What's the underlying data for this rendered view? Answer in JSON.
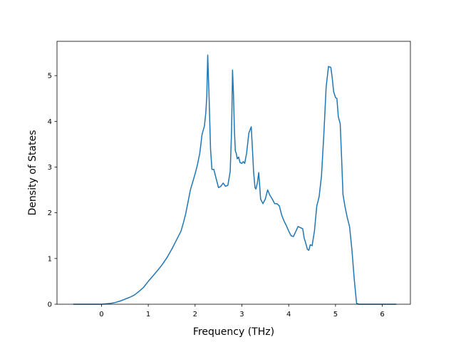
{
  "chart_data": {
    "type": "line",
    "title": "",
    "xlabel": "Frequency (THz)",
    "ylabel": "Density of States",
    "xlim": [
      -0.95,
      6.6
    ],
    "ylim": [
      0,
      5.75
    ],
    "grid": false,
    "legend": "none",
    "x_ticks": [
      0,
      1,
      2,
      3,
      4,
      5,
      6
    ],
    "y_ticks": [
      0,
      1,
      2,
      3,
      4,
      5
    ],
    "series": [
      {
        "color": "#1f77b4",
        "x": [
          -0.6,
          -0.2,
          0.0,
          0.2,
          0.3,
          0.4,
          0.5,
          0.6,
          0.7,
          0.8,
          0.9,
          1.0,
          1.1,
          1.2,
          1.3,
          1.4,
          1.5,
          1.6,
          1.7,
          1.75,
          1.8,
          1.9,
          2.0,
          2.05,
          2.1,
          2.15,
          2.2,
          2.23,
          2.25,
          2.27,
          2.3,
          2.33,
          2.36,
          2.4,
          2.45,
          2.5,
          2.55,
          2.6,
          2.65,
          2.7,
          2.75,
          2.78,
          2.8,
          2.82,
          2.84,
          2.86,
          2.88,
          2.9,
          2.93,
          2.96,
          3.0,
          3.03,
          3.06,
          3.1,
          3.15,
          3.2,
          3.23,
          3.25,
          3.28,
          3.3,
          3.33,
          3.36,
          3.4,
          3.45,
          3.5,
          3.55,
          3.6,
          3.65,
          3.7,
          3.75,
          3.8,
          3.85,
          3.9,
          3.95,
          4.0,
          4.05,
          4.1,
          4.2,
          4.3,
          4.33,
          4.36,
          4.4,
          4.43,
          4.46,
          4.5,
          4.55,
          4.6,
          4.65,
          4.7,
          4.75,
          4.8,
          4.85,
          4.9,
          4.93,
          4.96,
          5.0,
          5.03,
          5.06,
          5.1,
          5.13,
          5.16,
          5.2,
          5.25,
          5.3,
          5.35,
          5.4,
          5.45,
          5.5,
          5.55,
          5.6,
          5.65,
          5.7,
          5.75,
          5.8,
          6.0,
          6.3
        ],
        "y": [
          0,
          0,
          0.0,
          0.02,
          0.04,
          0.07,
          0.11,
          0.15,
          0.2,
          0.28,
          0.37,
          0.5,
          0.62,
          0.74,
          0.87,
          1.02,
          1.2,
          1.4,
          1.6,
          1.78,
          1.98,
          2.5,
          2.85,
          3.05,
          3.3,
          3.72,
          3.9,
          4.2,
          4.55,
          5.45,
          4.5,
          3.4,
          2.95,
          2.95,
          2.75,
          2.55,
          2.58,
          2.65,
          2.58,
          2.6,
          2.9,
          3.8,
          5.12,
          4.6,
          3.8,
          3.35,
          3.3,
          3.18,
          3.22,
          3.1,
          3.08,
          3.12,
          3.08,
          3.3,
          3.75,
          3.88,
          3.3,
          2.9,
          2.55,
          2.52,
          2.65,
          2.88,
          2.3,
          2.2,
          2.3,
          2.5,
          2.38,
          2.3,
          2.2,
          2.2,
          2.15,
          1.95,
          1.82,
          1.72,
          1.6,
          1.5,
          1.48,
          1.7,
          1.65,
          1.45,
          1.35,
          1.2,
          1.18,
          1.3,
          1.28,
          1.6,
          2.15,
          2.35,
          2.8,
          3.7,
          4.75,
          5.2,
          5.18,
          4.95,
          4.65,
          4.52,
          4.5,
          4.1,
          3.95,
          3.2,
          2.4,
          2.15,
          1.9,
          1.7,
          1.2,
          0.55,
          0.02,
          0,
          0,
          0,
          0,
          0,
          0,
          0,
          0,
          0
        ]
      }
    ]
  }
}
